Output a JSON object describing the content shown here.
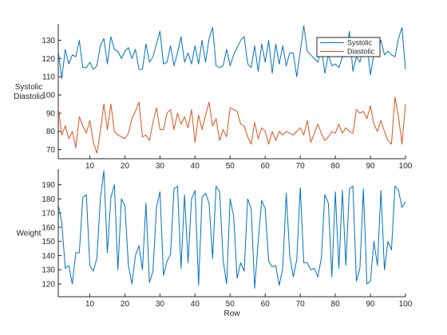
{
  "chart_data": [
    {
      "type": "line",
      "panel": "top",
      "ylabel_lines": [
        "Systolic",
        "Diastolic"
      ],
      "xlabel": "",
      "xlim": [
        1,
        100
      ],
      "ylim": [
        65,
        139
      ],
      "yticks": [
        70,
        80,
        90,
        100,
        110,
        120,
        130
      ],
      "xticks": [
        10,
        20,
        30,
        40,
        50,
        60,
        70,
        80,
        90,
        100
      ],
      "show_xtick_labels": true,
      "legend_position": "top-right",
      "series": [
        {
          "name": "Systolic",
          "color": "#0072BD",
          "x_start": 1,
          "values": [
            124,
            109,
            125,
            117,
            122,
            121,
            130,
            115,
            115,
            118,
            114,
            116,
            127,
            131,
            117,
            132,
            125,
            124,
            120,
            124,
            126,
            120,
            125,
            114,
            114,
            128,
            118,
            121,
            128,
            135,
            117,
            118,
            127,
            116,
            123,
            132,
            118,
            123,
            117,
            127,
            117,
            130,
            118,
            131,
            137,
            116,
            115,
            116,
            125,
            116,
            122,
            126,
            130,
            132,
            117,
            115,
            127,
            113,
            128,
            118,
            130,
            112,
            128,
            117,
            127,
            116,
            123,
            123,
            110,
            124,
            138,
            124,
            122,
            120,
            118,
            126,
            112,
            122,
            116,
            117,
            115,
            121,
            121,
            135,
            113,
            121,
            118,
            126,
            128,
            111,
            123,
            123,
            130,
            122,
            124,
            122,
            121,
            131,
            137,
            114
          ]
        },
        {
          "name": "Diastolic",
          "color": "#D95319",
          "x_start": 1,
          "values": [
            93,
            78,
            83,
            76,
            80,
            71,
            88,
            83,
            79,
            86,
            74,
            68,
            80,
            95,
            81,
            95,
            80,
            78,
            77,
            76,
            79,
            87,
            91,
            96,
            77,
            78,
            75,
            85,
            93,
            81,
            81,
            90,
            92,
            81,
            90,
            84,
            88,
            82,
            92,
            74,
            89,
            81,
            89,
            96,
            83,
            87,
            75,
            81,
            77,
            93,
            92,
            91,
            84,
            83,
            77,
            73,
            85,
            76,
            82,
            80,
            73,
            80,
            75,
            80,
            78,
            80,
            79,
            78,
            80,
            82,
            78,
            86,
            74,
            79,
            84,
            79,
            75,
            77,
            80,
            79,
            84,
            79,
            82,
            80,
            79,
            92,
            90,
            91,
            87,
            94,
            84,
            80,
            86,
            80,
            75,
            73,
            99,
            88,
            73,
            95
          ]
        }
      ]
    },
    {
      "type": "line",
      "panel": "bottom",
      "ylabel_lines": [
        "Weight"
      ],
      "xlabel": "Row",
      "xlim": [
        1,
        100
      ],
      "ylim": [
        111,
        201
      ],
      "yticks": [
        120,
        130,
        140,
        150,
        160,
        170,
        180,
        190
      ],
      "xticks": [
        10,
        20,
        30,
        40,
        50,
        60,
        70,
        80,
        90,
        100
      ],
      "show_xtick_labels": true,
      "legend_position": "",
      "series": [
        {
          "name": "",
          "color": "#0072BD",
          "x_start": 1,
          "values": [
            176,
            163,
            131,
            133,
            120,
            142,
            142,
            181,
            183,
            133,
            129,
            138,
            180,
            200,
            142,
            181,
            190,
            130,
            180,
            175,
            133,
            120,
            140,
            147,
            130,
            177,
            121,
            129,
            174,
            185,
            126,
            136,
            141,
            187,
            189,
            131,
            183,
            135,
            180,
            186,
            119,
            181,
            184,
            177,
            138,
            189,
            185,
            137,
            120,
            180,
            168,
            124,
            135,
            129,
            180,
            173,
            117,
            150,
            179,
            173,
            136,
            132,
            133,
            119,
            131,
            184,
            140,
            125,
            137,
            188,
            135,
            135,
            130,
            131,
            125,
            138,
            183,
            177,
            125,
            185,
            131,
            186,
            133,
            187,
            189,
            122,
            131,
            187,
            120,
            122,
            150,
            133,
            186,
            130,
            150,
            144,
            189,
            186,
            174,
            178
          ]
        }
      ]
    }
  ]
}
